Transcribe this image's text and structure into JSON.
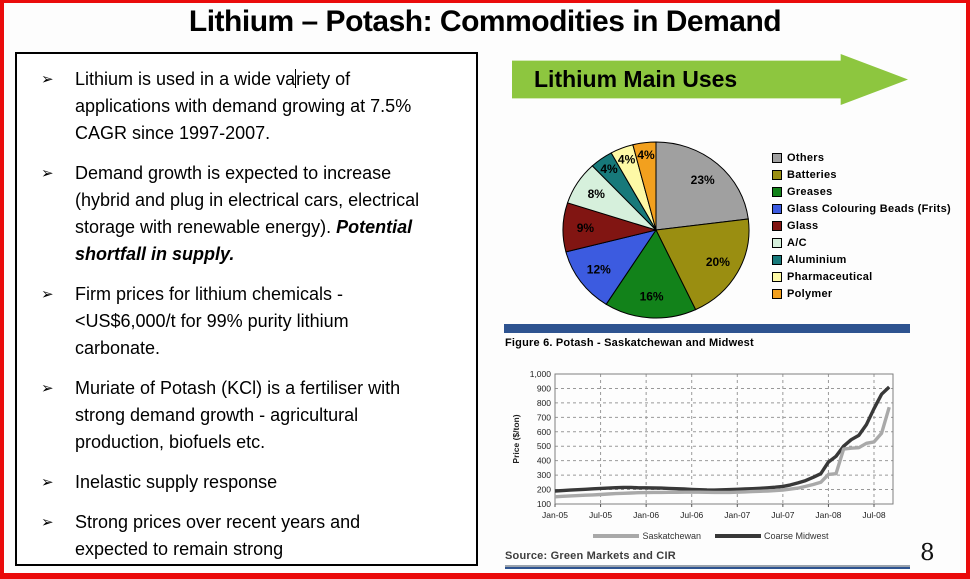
{
  "title": "Lithium – Potash: Commodities in Demand",
  "page_number": "8",
  "bullet_icon": "➢",
  "bullets": [
    {
      "parts": [
        {
          "t": "Lithium is used in a wide va"
        },
        {
          "caret": true
        },
        {
          "t": "riety of\napplications with demand growing at 7.5%\nCAGR since 1997-2007."
        }
      ]
    },
    {
      "parts": [
        {
          "t": "Demand growth is expected to increase\n(hybrid and plug in electrical cars, electrical\nstorage with renewable energy). "
        },
        {
          "t": "Potential\nshortfall in supply.",
          "b": true
        }
      ]
    },
    {
      "parts": [
        {
          "t": "Firm prices for lithium chemicals -\n<US$6,000/t for 99% purity lithium\ncarbonate."
        }
      ]
    },
    {
      "parts": [
        {
          "t": "Muriate of Potash (KCl) is a fertiliser with\nstrong demand growth - agricultural\nproduction, biofuels etc."
        }
      ]
    },
    {
      "parts": [
        {
          "t": "Inelastic supply response"
        }
      ]
    },
    {
      "parts": [
        {
          "t": "Strong prices over recent years and\nexpected to remain strong"
        }
      ]
    }
  ],
  "banner": {
    "label": "Lithium Main Uses",
    "color": "#8dc63f"
  },
  "colors": {
    "slide_border": "#ea0b0b",
    "divider_blue": "#2e5390",
    "grid_gray": "#999999",
    "plot_frame": "#7f7f7f"
  },
  "chart_data": [
    {
      "type": "pie",
      "title": "Lithium Main Uses",
      "labels": [
        "Others",
        "Batteries",
        "Greases",
        "Glass Colouring Beads (Frits)",
        "Glass",
        "A/C",
        "Aluminium",
        "Pharmaceutical",
        "Polymer"
      ],
      "values": [
        23,
        20,
        16,
        12,
        9,
        8,
        4,
        4,
        4
      ],
      "colors": [
        "#a0a0a0",
        "#9a8e11",
        "#12821a",
        "#3c5be0",
        "#811512",
        "#d6f0dc",
        "#17797a",
        "#fdf9a6",
        "#f2a01e"
      ],
      "label_format": "percent",
      "legend_position": "right",
      "start_angle": "top",
      "direction": "clockwise"
    },
    {
      "type": "line",
      "figure_caption": "Figure 6. Potash - Saskatchewan and Midwest",
      "source": "Source: Green Markets and CIR",
      "ylabel": "Price ($/ton)",
      "ylim": [
        100,
        1000
      ],
      "ytick_step": 100,
      "ytick_labels": [
        "100",
        "200",
        "300",
        "400",
        "500",
        "600",
        "700",
        "800",
        "900",
        "1,000"
      ],
      "xtick_labels": [
        "Jan-05",
        "Jul-05",
        "Jan-06",
        "Jul-06",
        "Jan-07",
        "Jul-07",
        "Jan-08",
        "Jul-08"
      ],
      "months_per_tick": 6,
      "x_start": "Jan-05",
      "x_end": "Sep-08",
      "grid": true,
      "legend_position": "bottom",
      "series": [
        {
          "name": "Coarse Midwest",
          "color": "#383838",
          "values": [
            190,
            193,
            196,
            199,
            202,
            205,
            208,
            210,
            213,
            215,
            215,
            212,
            212,
            211,
            210,
            208,
            206,
            204,
            201,
            199,
            197,
            196,
            198,
            200,
            202,
            204,
            206,
            209,
            212,
            216,
            222,
            232,
            246,
            262,
            285,
            310,
            390,
            430,
            500,
            545,
            575,
            650,
            760,
            860,
            910
          ]
        },
        {
          "name": "Saskatchewan",
          "color": "#a9a9a9",
          "values": [
            150,
            153,
            156,
            158,
            161,
            163,
            166,
            169,
            172,
            174,
            176,
            178,
            179,
            180,
            180,
            181,
            181,
            182,
            182,
            182,
            181,
            180,
            180,
            180,
            182,
            184,
            186,
            188,
            190,
            193,
            197,
            203,
            210,
            222,
            235,
            250,
            305,
            310,
            480,
            486,
            490,
            520,
            530,
            590,
            770
          ]
        }
      ],
      "legend_order": [
        "Saskatchewan",
        "Coarse Midwest"
      ]
    }
  ]
}
